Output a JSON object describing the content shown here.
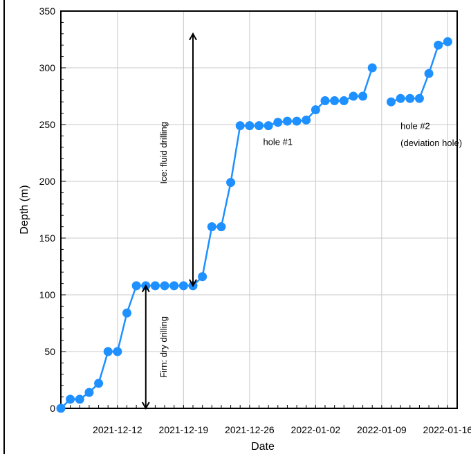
{
  "chart_data": {
    "type": "line",
    "xlabel": "Date",
    "ylabel": "Depth (m)",
    "ylim": [
      0,
      350
    ],
    "yticks": [
      0,
      50,
      100,
      150,
      200,
      250,
      300,
      350
    ],
    "xlim": [
      "2021-12-06",
      "2022-01-17"
    ],
    "xticks": [
      "2021-12-12",
      "2021-12-19",
      "2021-12-26",
      "2022-01-02",
      "2022-01-09",
      "2022-01-16"
    ],
    "grid": true,
    "legend": "none",
    "series_color": "#1E90FF",
    "series": [
      {
        "points": [
          [
            "2021-12-06",
            0
          ],
          [
            "2021-12-07",
            8
          ],
          [
            "2021-12-08",
            8
          ],
          [
            "2021-12-09",
            14
          ],
          [
            "2021-12-10",
            22
          ],
          [
            "2021-12-11",
            50
          ],
          [
            "2021-12-12",
            50
          ],
          [
            "2021-12-13",
            84
          ],
          [
            "2021-12-14",
            108
          ],
          [
            "2021-12-15",
            108
          ],
          [
            "2021-12-16",
            108
          ],
          [
            "2021-12-17",
            108
          ],
          [
            "2021-12-18",
            108
          ],
          [
            "2021-12-19",
            108
          ],
          [
            "2021-12-20",
            108
          ],
          [
            "2021-12-21",
            116
          ],
          [
            "2021-12-22",
            160
          ],
          [
            "2021-12-23",
            160
          ],
          [
            "2021-12-24",
            199
          ],
          [
            "2021-12-25",
            249
          ],
          [
            "2021-12-26",
            249
          ],
          [
            "2021-12-27",
            249
          ],
          [
            "2021-12-28",
            249
          ],
          [
            "2021-12-29",
            252
          ],
          [
            "2021-12-30",
            253
          ],
          [
            "2021-12-31",
            253
          ],
          [
            "2022-01-01",
            254
          ],
          [
            "2022-01-02",
            263
          ],
          [
            "2022-01-03",
            271
          ],
          [
            "2022-01-04",
            271
          ],
          [
            "2022-01-05",
            271
          ],
          [
            "2022-01-06",
            275
          ],
          [
            "2022-01-07",
            275
          ],
          [
            "2022-01-08",
            300
          ]
        ]
      },
      {
        "points": [
          [
            "2022-01-10",
            270
          ],
          [
            "2022-01-11",
            273
          ],
          [
            "2022-01-12",
            273
          ],
          [
            "2022-01-13",
            273
          ],
          [
            "2022-01-14",
            295
          ],
          [
            "2022-01-15",
            320
          ],
          [
            "2022-01-16",
            323
          ]
        ]
      }
    ],
    "annotations": {
      "ice": {
        "text": "Ice: fluid drilling",
        "x": "2021-12-20",
        "y_from": 108,
        "y_to": 330
      },
      "firn": {
        "text": "Firn: dry drilling",
        "x": "2021-12-15",
        "y_from": 0,
        "y_to": 108
      },
      "hole1": {
        "text": "hole #1",
        "x": "2021-12-29",
        "y": 232
      },
      "hole2_line1": {
        "text": "hole #2",
        "x": "2022-01-11",
        "y": 246
      },
      "hole2_line2": {
        "text": "(deviation hole)",
        "x": "2022-01-11",
        "y": 231
      }
    }
  }
}
